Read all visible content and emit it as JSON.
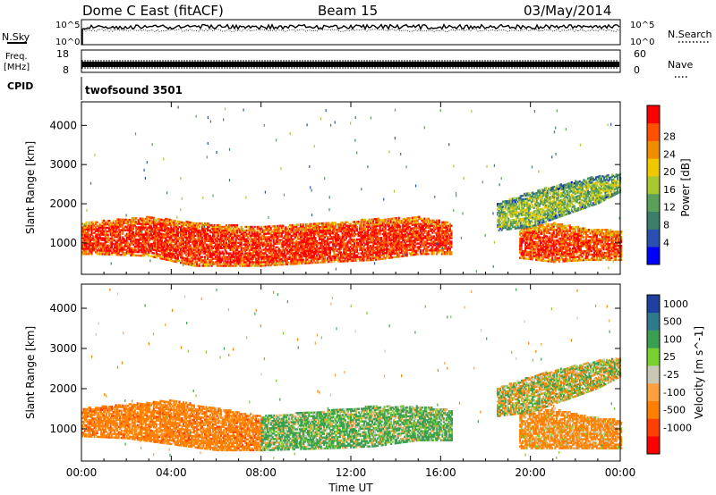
{
  "header": {
    "station": "Dome C East (fitACF)",
    "beam": "Beam 15",
    "date": "03/May/2014"
  },
  "noise_panel": {
    "left_label": "N.Sky",
    "right_label": "N.Search",
    "top_tick": "10^5",
    "bottom_tick": "10^0"
  },
  "freq_panel": {
    "left_label_line1": "Freq.",
    "left_label_line2": "[MHz]",
    "left_ticks": [
      "18",
      "8"
    ],
    "right_ticks": [
      "60",
      "0"
    ],
    "right_label": "Nave"
  },
  "cpid_panel": {
    "label": "CPID",
    "value": "twofsound 3501"
  },
  "colors": {
    "power": [
      "#0000ff",
      "#2a4fb0",
      "#3d7e6a",
      "#5aa05a",
      "#a8c832",
      "#f0c800",
      "#f08c00",
      "#ff5000",
      "#ff0000"
    ],
    "velocity": [
      "#ff0000",
      "#ff4000",
      "#ff8000",
      "#ffa040",
      "#c8c8b4",
      "#7ad030",
      "#3aa050",
      "#2f7a8a",
      "#2040a0"
    ]
  },
  "chart_data": [
    {
      "type": "heatmap",
      "title": "Power",
      "ylabel": "Slant Range [km]",
      "xlabel": "Time UT",
      "x_ticks": [
        "00:00",
        "04:00",
        "08:00",
        "12:00",
        "16:00",
        "20:00",
        "00:00"
      ],
      "y_ticks": [
        "1000",
        "2000",
        "3000",
        "4000"
      ],
      "ylim": [
        200,
        4600
      ],
      "xlim": [
        0,
        24
      ],
      "colorbar": {
        "label": "Power [dB]",
        "ticks": [
          "4",
          "8",
          "12",
          "16",
          "20",
          "24",
          "28"
        ],
        "range": [
          0,
          30
        ]
      },
      "bands": [
        {
          "x": [
            0,
            0.8,
            3,
            5,
            8,
            11,
            13,
            15,
            16.5
          ],
          "y_low": [
            700,
            700,
            650,
            400,
            400,
            500,
            550,
            700,
            700
          ],
          "y_high": [
            1500,
            1550,
            1650,
            1500,
            1400,
            1500,
            1600,
            1650,
            1500
          ],
          "value": 27
        },
        {
          "x": [
            19.5,
            21,
            22.5,
            24
          ],
          "y_low": [
            600,
            500,
            550,
            550
          ],
          "y_high": [
            1400,
            1500,
            1350,
            1300
          ],
          "value": 26
        },
        {
          "x": [
            18.5,
            20,
            21.5,
            23,
            24
          ],
          "y_low": [
            1300,
            1400,
            1700,
            2000,
            2300
          ],
          "y_high": [
            2000,
            2300,
            2500,
            2700,
            2750
          ],
          "value": 14
        }
      ]
    },
    {
      "type": "heatmap",
      "title": "Velocity",
      "ylabel": "Slant Range [km]",
      "xlabel": "Time UT",
      "x_ticks": [
        "00:00",
        "04:00",
        "08:00",
        "12:00",
        "16:00",
        "20:00",
        "00:00"
      ],
      "y_ticks": [
        "1000",
        "2000",
        "3000",
        "4000"
      ],
      "ylim": [
        200,
        4600
      ],
      "xlim": [
        0,
        24
      ],
      "colorbar": {
        "label": "Velocity [m s^-1]",
        "ticks": [
          "1000",
          "500",
          "100",
          "25",
          "-25",
          "-100",
          "-500",
          "-1000"
        ]
      },
      "bands": [
        {
          "x": [
            0,
            2,
            4,
            6,
            8
          ],
          "y_low": [
            800,
            750,
            600,
            450,
            450
          ],
          "y_high": [
            1500,
            1600,
            1700,
            1500,
            1300
          ],
          "value": -300
        },
        {
          "x": [
            8,
            11,
            13,
            15,
            16.5
          ],
          "y_low": [
            450,
            500,
            550,
            700,
            700
          ],
          "y_high": [
            1300,
            1450,
            1550,
            1550,
            1450
          ],
          "value": 150
        },
        {
          "x": [
            19.5,
            21,
            22.5,
            24
          ],
          "y_low": [
            500,
            500,
            500,
            500
          ],
          "y_high": [
            1400,
            1500,
            1300,
            1200
          ],
          "value": -200
        },
        {
          "x": [
            18.5,
            20,
            21.5,
            23,
            24
          ],
          "y_low": [
            1300,
            1400,
            1700,
            2000,
            2300
          ],
          "y_high": [
            2000,
            2300,
            2500,
            2700,
            2750
          ],
          "value": 0
        }
      ]
    }
  ]
}
